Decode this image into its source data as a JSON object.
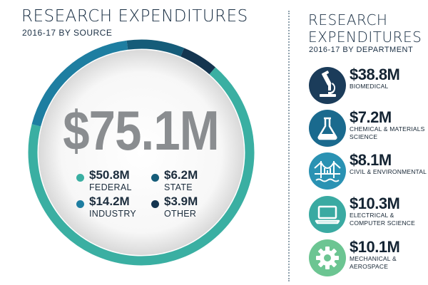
{
  "left_panel": {
    "title": "RESEARCH EXPENDITURES",
    "subtitle": "2016-17 BY SOURCE",
    "total": "$75.1M"
  },
  "right_panel": {
    "title_line1": "RESEARCH",
    "title_line2": "EXPENDITURES",
    "subtitle": "2016-17 BY DEPARTMENT"
  },
  "legend": [
    {
      "value": "$50.8M",
      "label": "FEDERAL"
    },
    {
      "value": "$6.2M",
      "label": "STATE"
    },
    {
      "value": "$14.2M",
      "label": "INDUSTRY"
    },
    {
      "value": "$3.9M",
      "label": "OTHER"
    }
  ],
  "departments": [
    {
      "value": "$38.8M",
      "label": "BIOMEDICAL",
      "icon": "microscope-icon",
      "color": "#1b3c5a"
    },
    {
      "value": "$7.2M",
      "label": "CHEMICAL & MATERIALS SCIENCE",
      "icon": "flask-icon",
      "color": "#1a6a8e"
    },
    {
      "value": "$8.1M",
      "label": "CIVIL & ENVIRONMENTAL",
      "icon": "bridge-icon",
      "color": "#2a92b3"
    },
    {
      "value": "$10.3M",
      "label": "ELECTRICAL & COMPUTER SCIENCE",
      "icon": "laptop-icon",
      "color": "#3aaaa2"
    },
    {
      "value": "$10.1M",
      "label": "MECHANICAL & AEROSPACE",
      "icon": "gear-icon",
      "color": "#6cc592"
    }
  ],
  "chart_data": [
    {
      "type": "pie",
      "categories": [
        "FEDERAL",
        "INDUSTRY",
        "STATE",
        "OTHER"
      ],
      "values": [
        50.8,
        14.2,
        6.2,
        3.9
      ],
      "colors": [
        "#3aafa2",
        "#1e7ea1",
        "#155c79",
        "#143550"
      ]
    }
  ]
}
